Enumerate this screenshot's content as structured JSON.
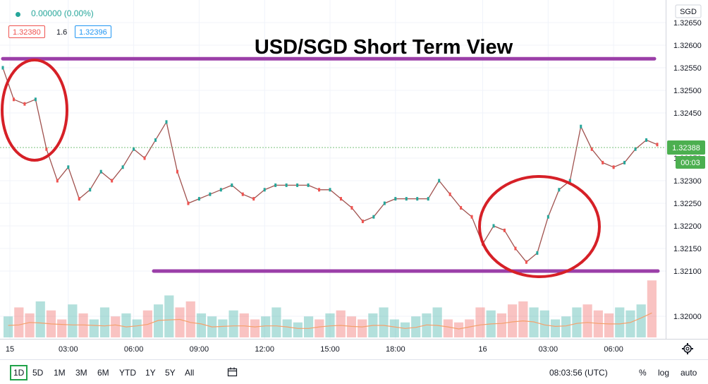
{
  "overlay": {
    "change_text": "0.00000 (0.00%)",
    "bid": "1.32380",
    "spread": "1.6",
    "ask": "1.32396"
  },
  "chart_data": {
    "type": "line",
    "title": "USD/SGD Short Term View",
    "currency": "SGD",
    "x": [
      "15",
      "00:30",
      "01:00",
      "01:30",
      "02:00",
      "02:30",
      "03:00",
      "03:30",
      "04:00",
      "04:30",
      "05:00",
      "05:30",
      "06:00",
      "06:30",
      "07:00",
      "07:30",
      "08:00",
      "08:30",
      "09:00",
      "09:30",
      "10:00",
      "10:30",
      "11:00",
      "11:30",
      "12:00",
      "12:30",
      "13:00",
      "13:30",
      "14:00",
      "14:30",
      "15:00",
      "15:30",
      "16:00",
      "16:30",
      "17:00",
      "17:30",
      "18:00",
      "18:30",
      "19:00",
      "19:30",
      "20:00",
      "20:30",
      "21:00",
      "21:30",
      "16",
      "00:30",
      "01:00",
      "01:30",
      "02:00",
      "02:30",
      "03:00",
      "03:30",
      "04:00",
      "04:30",
      "05:00",
      "05:30",
      "06:00",
      "06:30",
      "07:00",
      "07:30",
      "08:00"
    ],
    "series": [
      {
        "values": [
          1.3255,
          1.3248,
          1.3247,
          1.3248,
          1.3237,
          1.323,
          1.3233,
          1.3226,
          1.3228,
          1.3232,
          1.323,
          1.3233,
          1.3237,
          1.3235,
          1.3239,
          1.3243,
          1.3232,
          1.3225,
          1.3226,
          1.3227,
          1.3228,
          1.3229,
          1.3227,
          1.3226,
          1.3228,
          1.3229,
          1.3229,
          1.3229,
          1.3229,
          1.3228,
          1.3228,
          1.3226,
          1.3224,
          1.3221,
          1.3222,
          1.3225,
          1.3226,
          1.3226,
          1.3226,
          1.3226,
          1.323,
          1.3227,
          1.3224,
          1.3222,
          1.3216,
          1.322,
          1.3219,
          1.3215,
          1.3212,
          1.3214,
          1.3222,
          1.3228,
          1.323,
          1.3242,
          1.3237,
          1.3234,
          1.3233,
          1.3234,
          1.3237,
          1.3239,
          1.3238
        ]
      }
    ],
    "volume_relative": [
      0.35,
      0.5,
      0.4,
      0.6,
      0.45,
      0.3,
      0.55,
      0.4,
      0.3,
      0.5,
      0.35,
      0.4,
      0.3,
      0.45,
      0.55,
      0.7,
      0.5,
      0.6,
      0.4,
      0.35,
      0.3,
      0.45,
      0.4,
      0.3,
      0.35,
      0.5,
      0.3,
      0.25,
      0.35,
      0.3,
      0.4,
      0.45,
      0.35,
      0.3,
      0.4,
      0.5,
      0.3,
      0.25,
      0.35,
      0.4,
      0.5,
      0.3,
      0.25,
      0.3,
      0.5,
      0.45,
      0.4,
      0.55,
      0.6,
      0.5,
      0.45,
      0.3,
      0.35,
      0.5,
      0.55,
      0.45,
      0.4,
      0.5,
      0.45,
      0.55,
      0.95
    ],
    "ylim": [
      1.3195,
      1.327
    ],
    "y_ticks": [
      "1.32650",
      "1.32600",
      "1.32550",
      "1.32500",
      "1.32450",
      "1.32350",
      "1.32300",
      "1.32250",
      "1.32200",
      "1.32150",
      "1.32100",
      "1.32000"
    ],
    "x_ticks": [
      {
        "label": "15",
        "at": "15"
      },
      {
        "label": "03:00",
        "at": "03:00"
      },
      {
        "label": "06:00",
        "at": "06:00"
      },
      {
        "label": "09:00",
        "at": "09:00"
      },
      {
        "label": "12:00",
        "at": "12:00"
      },
      {
        "label": "15:00",
        "at": "15:00"
      },
      {
        "label": "18:00",
        "at": "18:00"
      },
      {
        "label": "16",
        "at": "16"
      },
      {
        "label": "03:00",
        "at": "03:00#2"
      },
      {
        "label": "06:00",
        "at": "06:00#2"
      }
    ],
    "last_price": "1.32388",
    "countdown": "00:03",
    "resistance": 1.3257,
    "support": 1.321,
    "colors": {
      "up": "#26a69a",
      "down": "#ef5350",
      "line": "#a0524f",
      "annotation_line": "#9b3fa8",
      "circle": "#d62027",
      "title": "#000000",
      "last_price_bg": "#4caf50",
      "volume_ma": "#f5a06b"
    }
  },
  "bottom_toolbar": {
    "ranges": [
      "1D",
      "5D",
      "1M",
      "3M",
      "6M",
      "YTD",
      "1Y",
      "5Y",
      "All"
    ],
    "selected_range": "1D",
    "time": "08:03:56 (UTC)",
    "percent": "%",
    "log": "log",
    "auto": "auto"
  }
}
